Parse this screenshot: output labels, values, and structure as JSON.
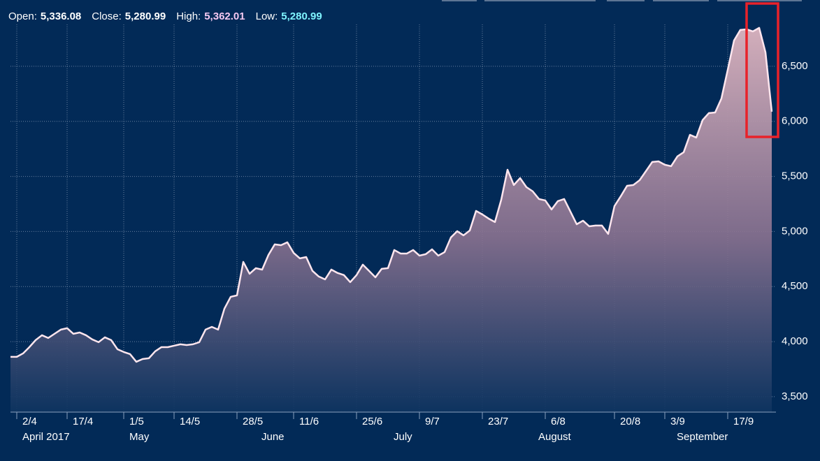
{
  "header": {
    "ohlc": [
      {
        "label": "Open:",
        "value": "5,336.08",
        "color": "#ffffff"
      },
      {
        "label": "Close:",
        "value": "5,280.99",
        "color": "#ffffff"
      },
      {
        "label": "High:",
        "value": "5,362.01",
        "color": "#f5c9f2"
      },
      {
        "label": "Low:",
        "value": "5,280.99",
        "color": "#7ff4ff"
      }
    ]
  },
  "chart_data": {
    "type": "area",
    "categories": [
      null,
      "2/4",
      null,
      null,
      null,
      null,
      null,
      null,
      null,
      "17/4",
      null,
      null,
      null,
      null,
      null,
      null,
      null,
      null,
      "1/5",
      null,
      null,
      null,
      null,
      null,
      null,
      null,
      "14/5",
      null,
      null,
      null,
      null,
      null,
      null,
      null,
      null,
      null,
      "28/5",
      null,
      null,
      null,
      null,
      null,
      null,
      null,
      null,
      "11/6",
      null,
      null,
      null,
      null,
      null,
      null,
      null,
      null,
      null,
      "25/6",
      null,
      null,
      null,
      null,
      null,
      null,
      null,
      null,
      null,
      "9/7",
      null,
      null,
      null,
      null,
      null,
      null,
      null,
      null,
      null,
      "23/7",
      null,
      null,
      null,
      null,
      null,
      null,
      null,
      null,
      null,
      "6/8",
      null,
      null,
      null,
      null,
      null,
      null,
      null,
      null,
      null,
      null,
      "20/8",
      null,
      null,
      null,
      null,
      null,
      null,
      null,
      "3/9",
      null,
      null,
      null,
      null,
      null,
      null,
      null,
      null,
      null,
      "17/9",
      null,
      null,
      null,
      null,
      null,
      null,
      null
    ],
    "category_groups": [
      null,
      "April 2017",
      null,
      null,
      null,
      null,
      null,
      null,
      null,
      null,
      null,
      null,
      null,
      null,
      null,
      null,
      null,
      null,
      "May",
      null,
      null,
      null,
      null,
      null,
      null,
      null,
      null,
      null,
      null,
      null,
      null,
      null,
      null,
      null,
      null,
      null,
      null,
      null,
      null,
      "June",
      null,
      null,
      null,
      null,
      null,
      null,
      null,
      null,
      null,
      null,
      null,
      null,
      null,
      null,
      null,
      null,
      null,
      null,
      null,
      null,
      "July",
      null,
      null,
      null,
      null,
      null,
      null,
      null,
      null,
      null,
      null,
      null,
      null,
      null,
      null,
      null,
      null,
      null,
      null,
      null,
      null,
      null,
      null,
      "August",
      null,
      null,
      null,
      null,
      null,
      null,
      null,
      null,
      null,
      null,
      null,
      null,
      null,
      null,
      null,
      null,
      null,
      null,
      null,
      null,
      null,
      "September",
      null,
      null,
      null,
      null,
      null,
      null,
      null,
      null,
      null,
      null,
      null,
      null,
      null,
      null,
      null,
      null
    ],
    "values": [
      3862,
      3862,
      3893,
      3950,
      4014,
      4058,
      4033,
      4071,
      4109,
      4122,
      4071,
      4083,
      4058,
      4020,
      3995,
      4039,
      4014,
      3931,
      3906,
      3887,
      3817,
      3842,
      3849,
      3912,
      3950,
      3950,
      3963,
      3976,
      3969,
      3976,
      3995,
      4109,
      4134,
      4109,
      4299,
      4407,
      4420,
      4724,
      4616,
      4667,
      4654,
      4787,
      4883,
      4876,
      4902,
      4806,
      4756,
      4768,
      4642,
      4591,
      4565,
      4654,
      4623,
      4604,
      4540,
      4604,
      4699,
      4642,
      4584,
      4661,
      4667,
      4832,
      4800,
      4800,
      4832,
      4781,
      4794,
      4838,
      4781,
      4813,
      4946,
      5003,
      4965,
      5009,
      5187,
      5155,
      5117,
      5086,
      5288,
      5561,
      5422,
      5485,
      5403,
      5365,
      5295,
      5282,
      5200,
      5276,
      5295,
      5181,
      5066,
      5098,
      5047,
      5054,
      5054,
      4978,
      5231,
      5320,
      5415,
      5422,
      5466,
      5548,
      5631,
      5637,
      5606,
      5593,
      5682,
      5720,
      5878,
      5853,
      6011,
      6075,
      6081,
      6208,
      6468,
      6734,
      6830,
      6836,
      6817,
      6849,
      6627,
      6088
    ],
    "color": "#ffe6ee",
    "ylim": [
      3360,
      6880
    ],
    "yticks": [
      {
        "value": 3500,
        "label": "3,500"
      },
      {
        "value": 4000,
        "label": "4,000"
      },
      {
        "value": 4500,
        "label": "4,500"
      },
      {
        "value": 5000,
        "label": "5,000"
      },
      {
        "value": 5500,
        "label": "5,500"
      },
      {
        "value": 6000,
        "label": "6,000"
      },
      {
        "value": 6500,
        "label": "6,500"
      }
    ],
    "grid": true
  }
}
